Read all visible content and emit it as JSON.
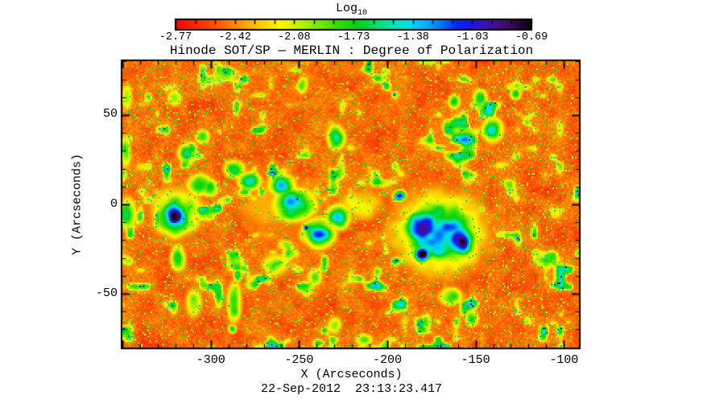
{
  "chart_data": {
    "type": "heatmap",
    "title": "Hinode SOT/SP — MERLIN : Degree of Polarization",
    "caption": "22-Sep-2012  23:13:23.417",
    "xlabel": "X (Arcseconds)",
    "ylabel": "Y (Arcseconds)",
    "xlim": [
      -350.5,
      -91.0
    ],
    "ylim": [
      -80.6,
      80.6
    ],
    "x_tick_labels": [
      "-300",
      "-250",
      "-200",
      "-150",
      "-100"
    ],
    "y_tick_labels": [
      "50",
      "0",
      "-50"
    ],
    "major_tick_step": 50,
    "minor_tick_step": 10,
    "grid": false,
    "colorbar": {
      "title": "Log",
      "title_subscript": "10",
      "tick_labels": [
        "-2.77",
        "-2.42",
        "-2.08",
        "-1.73",
        "-1.38",
        "-1.03",
        "-0.69"
      ],
      "min": -2.77,
      "max": -0.69,
      "minor_segments": 18,
      "position": "top"
    },
    "colormap": [
      {
        "t": 0.0,
        "c": "#ff0000"
      },
      {
        "t": 0.06,
        "c": "#ff2a00"
      },
      {
        "t": 0.12,
        "c": "#ff5a00"
      },
      {
        "t": 0.18,
        "c": "#ff9400"
      },
      {
        "t": 0.24,
        "c": "#ffce00"
      },
      {
        "t": 0.29,
        "c": "#fff600"
      },
      {
        "t": 0.34,
        "c": "#c8f400"
      },
      {
        "t": 0.4,
        "c": "#7ce800"
      },
      {
        "t": 0.46,
        "c": "#2ede00"
      },
      {
        "t": 0.51,
        "c": "#00d414"
      },
      {
        "t": 0.56,
        "c": "#00dc64"
      },
      {
        "t": 0.61,
        "c": "#00e4b4"
      },
      {
        "t": 0.66,
        "c": "#00dcf0"
      },
      {
        "t": 0.7,
        "c": "#00b4ff"
      },
      {
        "t": 0.75,
        "c": "#0072ff"
      },
      {
        "t": 0.79,
        "c": "#0028ff"
      },
      {
        "t": 0.83,
        "c": "#1c14e6"
      },
      {
        "t": 0.87,
        "c": "#3912b4"
      },
      {
        "t": 0.91,
        "c": "#460e82"
      },
      {
        "t": 0.95,
        "c": "#320a50"
      },
      {
        "t": 1.0,
        "c": "#0c020c"
      }
    ],
    "texture": {
      "seed": 11,
      "background_value_range": [
        0.04,
        0.26
      ]
    },
    "features": [
      {
        "name": "umbra-right-a",
        "x": -178.5,
        "y": -13,
        "rx": 10,
        "ry": 9,
        "amp": 1.0,
        "k": 0.8
      },
      {
        "name": "umbra-right-b",
        "x": -159.5,
        "y": -20,
        "rx": 9,
        "ry": 8,
        "amp": 1.0,
        "k": 0.8
      },
      {
        "name": "umbra-right-c",
        "x": -180,
        "y": -28,
        "rx": 5,
        "ry": 4.5,
        "amp": 0.95,
        "k": 0.9
      },
      {
        "name": "penumbra-right",
        "x": -170,
        "y": -16,
        "rx": 24,
        "ry": 21,
        "amp": 0.8,
        "k": 1.4
      },
      {
        "name": "halo-right",
        "x": -170,
        "y": -16,
        "rx": 32,
        "ry": 27,
        "amp": 0.5,
        "k": 1.2
      },
      {
        "name": "pore-nw-of-spot",
        "x": -193,
        "y": 5,
        "rx": 3.5,
        "ry": 3,
        "amp": 0.85,
        "k": 0.9
      },
      {
        "name": "umbra-left",
        "x": -321.5,
        "y": -6,
        "rx": 6.5,
        "ry": 7,
        "amp": 0.95,
        "k": 0.7
      },
      {
        "name": "penumbra-left",
        "x": -321,
        "y": -7,
        "rx": 12,
        "ry": 12,
        "amp": 0.72,
        "k": 1.2
      },
      {
        "name": "halo-left",
        "x": -319,
        "y": -4,
        "rx": 17,
        "ry": 15,
        "amp": 0.5,
        "k": 1.1
      },
      {
        "name": "left-south-blue",
        "x": -319,
        "y": -30,
        "rx": 5,
        "ry": 8,
        "amp": 0.55,
        "k": 1.1
      },
      {
        "name": "teal-ne-of-left-spot",
        "x": -307,
        "y": 11,
        "rx": 8,
        "ry": 7,
        "amp": 0.58,
        "k": 1.1
      },
      {
        "name": "left-edge-patch",
        "x": -348,
        "y": -5,
        "rx": 6,
        "ry": 10,
        "amp": 0.55,
        "k": 1.1
      },
      {
        "name": "left-edge-green",
        "x": -349,
        "y": 30,
        "rx": 4,
        "ry": 12,
        "amp": 0.45,
        "k": 1.1
      },
      {
        "name": "plage-blue-1",
        "x": -253,
        "y": 0,
        "rx": 13,
        "ry": 10,
        "amp": 0.72,
        "k": 1.1
      },
      {
        "name": "plage-blue-2",
        "x": -239,
        "y": -16,
        "rx": 10,
        "ry": 9,
        "amp": 0.72,
        "k": 1.1
      },
      {
        "name": "plage-blue-3",
        "x": -228,
        "y": -7,
        "rx": 8,
        "ry": 8,
        "amp": 0.62,
        "k": 1.1
      },
      {
        "name": "plage-blue-4",
        "x": -260,
        "y": 11,
        "rx": 9,
        "ry": 7,
        "amp": 0.65,
        "k": 1.1
      },
      {
        "name": "plage-blue-5",
        "x": -278,
        "y": 13,
        "rx": 8,
        "ry": 6,
        "amp": 0.6,
        "k": 1.1
      },
      {
        "name": "plage-blue-6",
        "x": -287,
        "y": 20,
        "rx": 7,
        "ry": 6,
        "amp": 0.55,
        "k": 1.1
      },
      {
        "name": "plage-blue-7",
        "x": -301,
        "y": 9,
        "rx": 6,
        "ry": 6,
        "amp": 0.5,
        "k": 1.1
      },
      {
        "name": "plage-pore-1",
        "x": -251,
        "y": 3,
        "rx": 2.2,
        "ry": 2.2,
        "amp": 0.9,
        "k": 1.0
      },
      {
        "name": "plage-pore-2",
        "x": -246,
        "y": -13,
        "rx": 2,
        "ry": 2,
        "amp": 0.88,
        "k": 1.0
      },
      {
        "name": "plage-envelope",
        "x": -258,
        "y": 0,
        "rx": 40,
        "ry": 24,
        "amp": 0.24,
        "k": 1.3
      },
      {
        "name": "yellow-zone",
        "x": -215,
        "y": 0,
        "rx": 18,
        "ry": 12,
        "amp": 0.3,
        "k": 1.2
      },
      {
        "name": "blue-dots-nw-1",
        "x": -314,
        "y": 29,
        "rx": 6,
        "ry": 6,
        "amp": 0.55,
        "k": 1.1
      },
      {
        "name": "blue-dots-nw-2",
        "x": -305,
        "y": 38,
        "rx": 5,
        "ry": 5,
        "amp": 0.5,
        "k": 1.1
      },
      {
        "name": "tm-blue-patch",
        "x": -229,
        "y": 38,
        "rx": 6,
        "ry": 8,
        "amp": 0.6,
        "k": 1.1
      },
      {
        "name": "tm-green-streak",
        "x": -248,
        "y": 67,
        "rx": 4,
        "ry": 6,
        "amp": 0.45,
        "k": 1.1
      },
      {
        "name": "tr-blue-1",
        "x": -140,
        "y": 42,
        "rx": 7,
        "ry": 8,
        "amp": 0.6,
        "k": 1.1
      },
      {
        "name": "tr-blue-2",
        "x": -147,
        "y": 60,
        "rx": 5,
        "ry": 6,
        "amp": 0.55,
        "k": 1.1
      },
      {
        "name": "tr-blue-3",
        "x": -127,
        "y": 62,
        "rx": 4,
        "ry": 4,
        "amp": 0.5,
        "k": 1.1
      },
      {
        "name": "tr-blue-4",
        "x": -162,
        "y": 58,
        "rx": 4,
        "ry": 5,
        "amp": 0.55,
        "k": 1.1
      },
      {
        "name": "sr-cyan-1",
        "x": -164,
        "y": -52,
        "rx": 8,
        "ry": 6,
        "amp": 0.5,
        "k": 1.1
      },
      {
        "name": "sr-cyan-2",
        "x": -152,
        "y": -64,
        "rx": 5,
        "ry": 6,
        "amp": 0.45,
        "k": 1.1
      },
      {
        "name": "sr-cyan-3",
        "x": -178,
        "y": -66,
        "rx": 4,
        "ry": 6,
        "amp": 0.45,
        "k": 1.1
      },
      {
        "name": "mid-green-1",
        "x": -264,
        "y": -34,
        "rx": 9,
        "ry": 7,
        "amp": 0.45,
        "k": 1.1
      },
      {
        "name": "mid-green-2",
        "x": -241,
        "y": -41,
        "rx": 6,
        "ry": 6,
        "amp": 0.4,
        "k": 1.1
      },
      {
        "name": "bl-green-chain",
        "x": -287,
        "y": -55,
        "rx": 5,
        "ry": 14,
        "amp": 0.5,
        "k": 1.1
      },
      {
        "name": "bl-blue-dot-1",
        "x": -285,
        "y": -40,
        "rx": 3,
        "ry": 4,
        "amp": 0.6,
        "k": 1.1
      },
      {
        "name": "bl-blue-dot-2",
        "x": -288,
        "y": -70,
        "rx": 3,
        "ry": 3,
        "amp": 0.55,
        "k": 1.1
      },
      {
        "name": "bottom-green-1",
        "x": -230,
        "y": -68,
        "rx": 5,
        "ry": 6,
        "amp": 0.45,
        "k": 1.1
      },
      {
        "name": "bottom-blue-dot",
        "x": -239,
        "y": -78,
        "rx": 4,
        "ry": 3,
        "amp": 0.5,
        "k": 1.1
      },
      {
        "name": "bottom-mid-patch",
        "x": -213,
        "y": -76,
        "rx": 6,
        "ry": 4,
        "amp": 0.45,
        "k": 1.1
      },
      {
        "name": "bl-green-2",
        "x": -310,
        "y": -55,
        "rx": 6,
        "ry": 10,
        "amp": 0.4,
        "k": 1.1
      },
      {
        "name": "tl-green-1",
        "x": -348,
        "y": 60,
        "rx": 4,
        "ry": 9,
        "amp": 0.45,
        "k": 1.1
      },
      {
        "name": "tl-green-2",
        "x": -321,
        "y": 60,
        "rx": 5,
        "ry": 6,
        "amp": 0.4,
        "k": 1.1
      }
    ]
  }
}
